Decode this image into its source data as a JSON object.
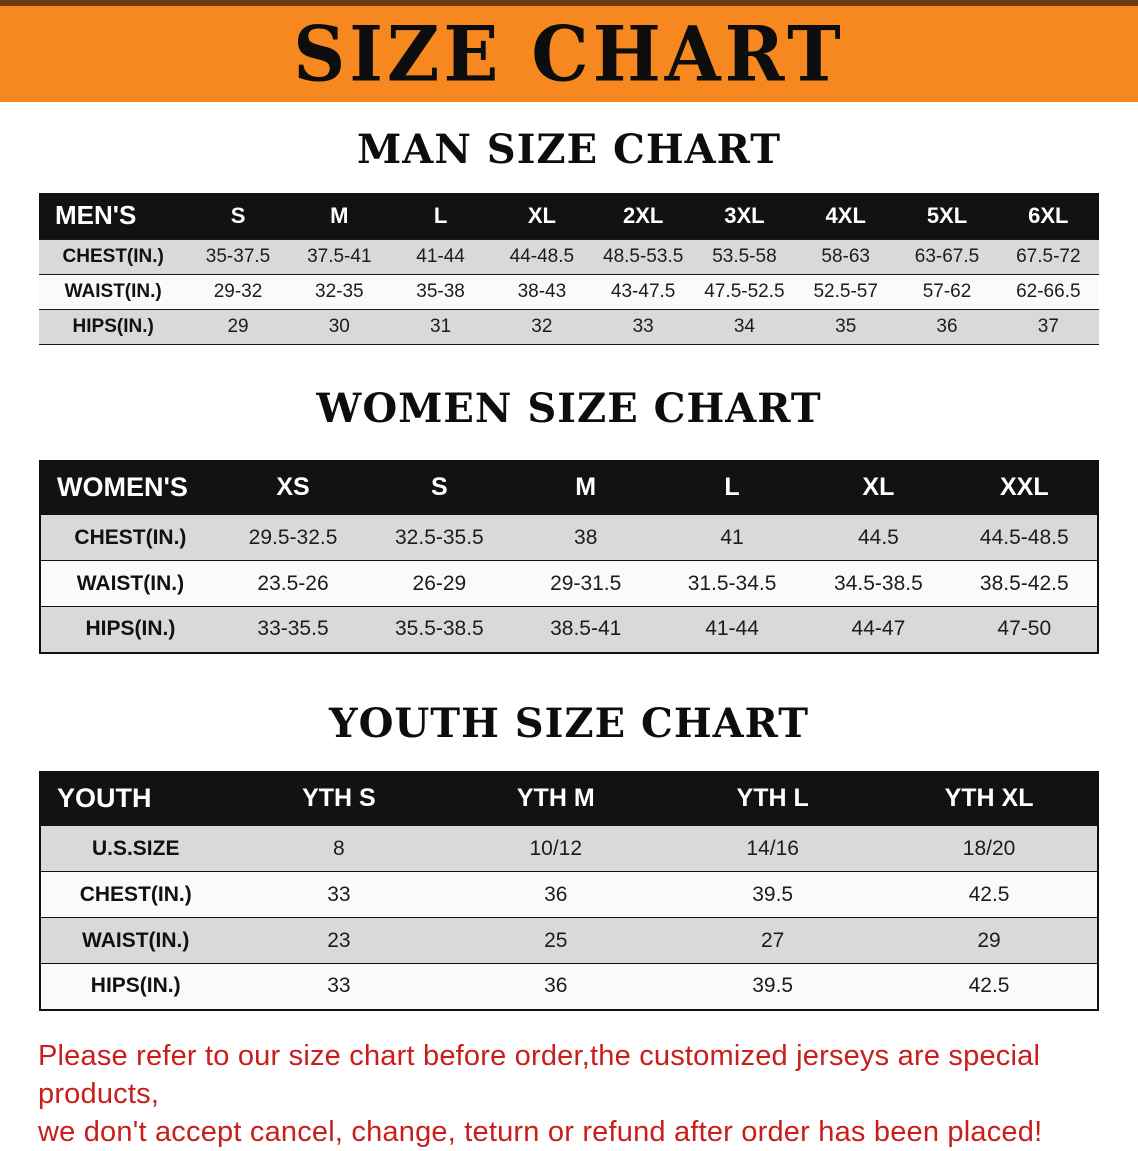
{
  "banner": {
    "title": "SIZE CHART",
    "bg_color": "#f6881f",
    "text_color": "#0d0d0d"
  },
  "men": {
    "heading": "MAN SIZE CHART",
    "label": "MEN'S",
    "columns": [
      "S",
      "M",
      "L",
      "XL",
      "2XL",
      "3XL",
      "4XL",
      "5XL",
      "6XL"
    ],
    "rows": [
      {
        "label": "CHEST(IN.)",
        "values": [
          "35-37.5",
          "37.5-41",
          "41-44",
          "44-48.5",
          "48.5-53.5",
          "53.5-58",
          "58-63",
          "63-67.5",
          "67.5-72"
        ]
      },
      {
        "label": "WAIST(IN.)",
        "values": [
          "29-32",
          "32-35",
          "35-38",
          "38-43",
          "43-47.5",
          "47.5-52.5",
          "52.5-57",
          "57-62",
          "62-66.5"
        ]
      },
      {
        "label": "HIPS(IN.)",
        "values": [
          "29",
          "30",
          "31",
          "32",
          "33",
          "34",
          "35",
          "36",
          "37"
        ]
      }
    ]
  },
  "women": {
    "heading": "WOMEN SIZE CHART",
    "label": "WOMEN'S",
    "columns": [
      "XS",
      "S",
      "M",
      "L",
      "XL",
      "XXL"
    ],
    "rows": [
      {
        "label": "CHEST(IN.)",
        "values": [
          "29.5-32.5",
          "32.5-35.5",
          "38",
          "41",
          "44.5",
          "44.5-48.5"
        ]
      },
      {
        "label": "WAIST(IN.)",
        "values": [
          "23.5-26",
          "26-29",
          "29-31.5",
          "31.5-34.5",
          "34.5-38.5",
          "38.5-42.5"
        ]
      },
      {
        "label": "HIPS(IN.)",
        "values": [
          "33-35.5",
          "35.5-38.5",
          "38.5-41",
          "41-44",
          "44-47",
          "47-50"
        ]
      }
    ]
  },
  "youth": {
    "heading": "YOUTH SIZE CHART",
    "label": "YOUTH",
    "columns": [
      "YTH S",
      "YTH M",
      "YTH L",
      "YTH XL"
    ],
    "rows": [
      {
        "label": "U.S.SIZE",
        "values": [
          "8",
          "10/12",
          "14/16",
          "18/20"
        ]
      },
      {
        "label": "CHEST(IN.)",
        "values": [
          "33",
          "36",
          "39.5",
          "42.5"
        ]
      },
      {
        "label": "WAIST(IN.)",
        "values": [
          "23",
          "25",
          "27",
          "29"
        ]
      },
      {
        "label": "HIPS(IN.)",
        "values": [
          "33",
          "36",
          "39.5",
          "42.5"
        ]
      }
    ]
  },
  "footer": {
    "line1": "Please refer to our size chart before order,the customized jerseys are special products,",
    "line2": "we don't accept cancel, change, teturn or refund after order has been placed!",
    "text_color": "#c81e1c"
  }
}
